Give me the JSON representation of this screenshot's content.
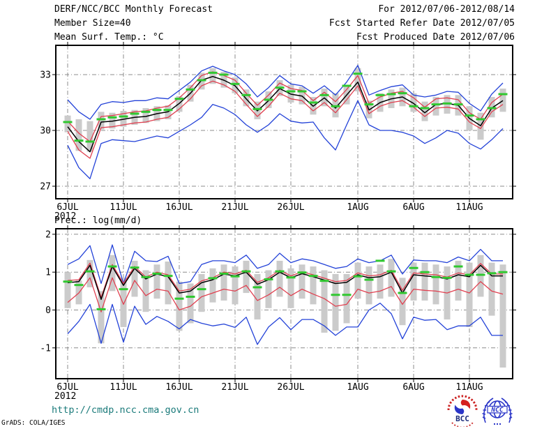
{
  "header": {
    "left": [
      "DERF/NCC/BCC Monthly Forecast",
      "Member Size=40",
      "Mean Surf. Temp.: °C"
    ],
    "right": [
      "For 2012/07/06-2012/08/14",
      "Fcst Started Refer Date 2012/07/05",
      "Fcst Produced Date 2012/07/06"
    ]
  },
  "between_label": "Prec.: log(mm/d)",
  "footer": {
    "url": "http://cmdp.ncc.cma.gov.cn",
    "credit": "GrADS: COLA/IGES"
  },
  "logos": {
    "bcc_label": "BCC",
    "ncc_label": "NCC"
  },
  "colors": {
    "blue": "#2342d8",
    "red": "#e04050",
    "black": "#000000",
    "green": "#30c830",
    "bar": "#cbcbcb",
    "grid": "#8c8c8c",
    "url": "#1a7a7a"
  },
  "chart_data": [
    {
      "type": "line",
      "title": "Mean Surf. Temp.: °C",
      "x_tick_labels": [
        "6JUL",
        "11JUL",
        "16JUL",
        "21JUL",
        "26JUL",
        "1AUG",
        "6AUG",
        "11AUG"
      ],
      "x_tick_day_index": [
        0,
        5,
        10,
        15,
        20,
        26,
        31,
        36
      ],
      "x_year_label": "2012",
      "n_points": 40,
      "yticks": [
        33,
        30,
        27
      ],
      "ylim": [
        26.3,
        34.6
      ],
      "grid": true,
      "legend_position": "none",
      "series": [
        {
          "name": "ensemble-max",
          "color": "blue",
          "values": [
            31.65,
            31.0,
            30.6,
            31.4,
            31.55,
            31.5,
            31.6,
            31.6,
            31.75,
            31.7,
            32.15,
            32.6,
            33.2,
            33.45,
            33.2,
            33.0,
            32.5,
            31.8,
            32.3,
            32.95,
            32.5,
            32.4,
            32.0,
            32.4,
            31.9,
            32.6,
            33.5,
            31.9,
            32.15,
            32.35,
            32.45,
            31.9,
            31.8,
            31.9,
            32.1,
            32.05,
            31.45,
            31.05,
            31.95,
            32.55
          ]
        },
        {
          "name": "upper-quartile",
          "color": "red",
          "values": [
            30.5,
            29.85,
            29.4,
            30.75,
            30.8,
            30.9,
            31.0,
            31.05,
            31.2,
            31.3,
            31.75,
            32.3,
            32.95,
            33.15,
            32.95,
            32.7,
            32.0,
            31.35,
            31.9,
            32.55,
            32.25,
            32.15,
            31.6,
            32.05,
            31.55,
            32.2,
            32.95,
            31.45,
            31.8,
            32.0,
            32.1,
            31.75,
            31.25,
            31.7,
            31.75,
            31.65,
            30.95,
            30.6,
            31.5,
            31.95
          ]
        },
        {
          "name": "lower-quartile",
          "color": "red",
          "values": [
            29.95,
            28.95,
            28.5,
            30.15,
            30.2,
            30.3,
            30.4,
            30.45,
            30.6,
            30.7,
            31.15,
            31.7,
            32.4,
            32.65,
            32.45,
            32.1,
            31.4,
            30.75,
            31.3,
            32.0,
            31.7,
            31.6,
            31.05,
            31.5,
            30.95,
            31.65,
            32.4,
            30.9,
            31.3,
            31.5,
            31.6,
            31.25,
            30.75,
            31.2,
            31.25,
            31.15,
            30.45,
            30.1,
            31.0,
            31.4
          ]
        },
        {
          "name": "ensemble-min",
          "color": "blue",
          "values": [
            29.2,
            28.0,
            27.4,
            29.3,
            29.5,
            29.45,
            29.4,
            29.55,
            29.7,
            29.6,
            29.95,
            30.3,
            30.7,
            31.4,
            31.2,
            30.85,
            30.3,
            29.9,
            30.3,
            30.9,
            30.5,
            30.4,
            30.45,
            29.6,
            28.95,
            30.3,
            31.6,
            30.3,
            30.0,
            30.0,
            29.9,
            29.7,
            29.3,
            29.6,
            30.0,
            29.85,
            29.3,
            29.0,
            29.5,
            30.1
          ]
        },
        {
          "name": "ensemble-median",
          "color": "black",
          "values": [
            30.2,
            29.4,
            28.85,
            30.45,
            30.5,
            30.6,
            30.7,
            30.75,
            30.9,
            31.0,
            31.45,
            32.0,
            32.7,
            32.9,
            32.7,
            32.4,
            31.7,
            31.05,
            31.6,
            32.25,
            31.95,
            31.85,
            31.3,
            31.75,
            31.2,
            31.9,
            32.6,
            31.1,
            31.5,
            31.7,
            31.8,
            31.45,
            30.95,
            31.4,
            31.45,
            31.35,
            30.65,
            30.25,
            31.2,
            31.6
          ]
        }
      ],
      "observation": {
        "name": "observation-dashes",
        "color": "green",
        "values": [
          30.45,
          29.45,
          29.4,
          30.6,
          30.7,
          30.75,
          30.9,
          31.0,
          31.1,
          31.1,
          31.7,
          32.2,
          32.7,
          33.1,
          33.0,
          32.5,
          31.9,
          31.15,
          31.65,
          32.3,
          32.1,
          32.1,
          31.5,
          31.9,
          31.3,
          32.4,
          33.05,
          31.4,
          31.9,
          31.95,
          32.0,
          31.3,
          31.2,
          31.4,
          31.45,
          31.4,
          30.8,
          30.6,
          31.2,
          31.95
        ]
      },
      "spread_bars": [
        [
          29.9,
          30.8
        ],
        [
          28.9,
          30.6
        ],
        [
          28.85,
          30.5
        ],
        [
          30.05,
          31.0
        ],
        [
          30.1,
          30.95
        ],
        [
          30.2,
          31.05
        ],
        [
          30.3,
          31.1
        ],
        [
          30.4,
          31.2
        ],
        [
          30.5,
          31.3
        ],
        [
          30.6,
          31.35
        ],
        [
          31.0,
          31.85
        ],
        [
          31.55,
          32.45
        ],
        [
          32.2,
          33.1
        ],
        [
          32.5,
          33.35
        ],
        [
          32.3,
          33.15
        ],
        [
          32.0,
          32.85
        ],
        [
          31.3,
          32.2
        ],
        [
          30.6,
          31.55
        ],
        [
          31.2,
          32.1
        ],
        [
          31.85,
          32.7
        ],
        [
          31.5,
          32.45
        ],
        [
          31.4,
          32.35
        ],
        [
          30.85,
          31.8
        ],
        [
          31.3,
          32.25
        ],
        [
          30.7,
          32.0
        ],
        [
          31.4,
          32.45
        ],
        [
          32.1,
          33.35
        ],
        [
          30.65,
          31.6
        ],
        [
          31.0,
          32.0
        ],
        [
          31.2,
          32.2
        ],
        [
          31.3,
          32.3
        ],
        [
          31.0,
          32.0
        ],
        [
          30.5,
          31.55
        ],
        [
          30.8,
          31.8
        ],
        [
          30.9,
          31.9
        ],
        [
          30.8,
          31.9
        ],
        [
          30.0,
          31.3
        ],
        [
          29.5,
          30.95
        ],
        [
          30.7,
          31.8
        ],
        [
          31.0,
          32.25
        ]
      ]
    },
    {
      "type": "line",
      "title": "Prec.: log(mm/d)",
      "x_tick_labels": [
        "6JUL",
        "11JUL",
        "16JUL",
        "21JUL",
        "26JUL",
        "1AUG",
        "6AUG",
        "11AUG"
      ],
      "x_tick_day_index": [
        0,
        5,
        10,
        15,
        20,
        26,
        31,
        36
      ],
      "x_year_label": "2012",
      "n_points": 40,
      "yticks": [
        2,
        1,
        0,
        -1
      ],
      "ylim": [
        -1.83,
        2.13
      ],
      "grid": true,
      "legend_position": "none",
      "series": [
        {
          "name": "ensemble-max",
          "color": "blue",
          "values": [
            1.2,
            1.35,
            1.7,
            0.7,
            1.72,
            0.7,
            1.55,
            1.3,
            1.28,
            1.42,
            0.7,
            0.75,
            1.2,
            1.3,
            1.3,
            1.25,
            1.45,
            1.1,
            1.2,
            1.5,
            1.25,
            1.35,
            1.3,
            1.2,
            1.1,
            1.15,
            1.35,
            1.25,
            1.3,
            1.45,
            0.95,
            1.32,
            1.3,
            1.3,
            1.25,
            1.4,
            1.3,
            1.6,
            1.3,
            1.3
          ]
        },
        {
          "name": "upper-quartile",
          "color": "red",
          "values": [
            0.78,
            0.8,
            1.24,
            0.33,
            1.2,
            0.7,
            1.15,
            0.87,
            1.0,
            0.93,
            0.5,
            0.55,
            0.77,
            0.85,
            1.0,
            0.95,
            1.05,
            0.73,
            0.85,
            1.05,
            0.9,
            1.01,
            0.93,
            0.84,
            0.75,
            0.78,
            0.98,
            0.9,
            0.93,
            1.05,
            0.52,
            0.98,
            0.95,
            0.93,
            0.87,
            0.98,
            0.93,
            1.23,
            0.95,
            0.95
          ]
        },
        {
          "name": "lower-quartile",
          "color": "red",
          "values": [
            0.2,
            0.45,
            0.85,
            -0.05,
            0.85,
            0.15,
            0.78,
            0.38,
            0.55,
            0.5,
            0.0,
            0.1,
            0.35,
            0.45,
            0.55,
            0.5,
            0.65,
            0.25,
            0.4,
            0.6,
            0.38,
            0.55,
            0.42,
            0.3,
            0.1,
            0.15,
            0.55,
            0.45,
            0.5,
            0.62,
            0.15,
            0.55,
            0.52,
            0.5,
            0.45,
            0.55,
            0.45,
            0.75,
            0.5,
            0.42
          ]
        },
        {
          "name": "ensemble-min",
          "color": "blue",
          "values": [
            -0.63,
            -0.3,
            0.15,
            -0.88,
            0.15,
            -0.85,
            0.1,
            -0.38,
            -0.17,
            -0.3,
            -0.5,
            -0.25,
            -0.35,
            -0.42,
            -0.37,
            -0.46,
            -0.19,
            -0.91,
            -0.45,
            -0.2,
            -0.52,
            -0.25,
            -0.25,
            -0.42,
            -0.67,
            -0.45,
            -0.45,
            0.0,
            0.18,
            -0.1,
            -0.76,
            -0.19,
            -0.27,
            -0.25,
            -0.52,
            -0.42,
            -0.42,
            -0.19,
            -0.67,
            -0.67
          ]
        },
        {
          "name": "ensemble-median",
          "color": "black",
          "values": [
            0.72,
            0.75,
            1.18,
            0.28,
            1.15,
            0.65,
            1.1,
            0.82,
            0.95,
            0.88,
            0.45,
            0.5,
            0.72,
            0.8,
            0.95,
            0.9,
            1.0,
            0.68,
            0.8,
            1.0,
            0.85,
            0.96,
            0.88,
            0.79,
            0.7,
            0.73,
            0.93,
            0.85,
            0.88,
            1.0,
            0.45,
            0.93,
            0.9,
            0.88,
            0.82,
            0.93,
            0.88,
            1.18,
            0.9,
            0.9
          ]
        }
      ],
      "observation": {
        "name": "observation-dashes",
        "color": "green",
        "values": [
          0.75,
          0.66,
          1.02,
          0.02,
          1.15,
          0.55,
          1.12,
          0.87,
          0.96,
          0.9,
          0.3,
          0.35,
          0.55,
          0.84,
          0.96,
          0.89,
          1.02,
          0.6,
          0.81,
          1.02,
          0.86,
          0.99,
          0.9,
          0.77,
          0.4,
          0.4,
          0.89,
          0.8,
          1.3,
          1.02,
          0.45,
          1.11,
          1.0,
          0.87,
          0.85,
          1.15,
          0.93,
          0.93,
          0.97,
          1.0
        ]
      },
      "spread_bars": [
        [
          0.05,
          1.0
        ],
        [
          0.15,
          0.78
        ],
        [
          0.6,
          1.32
        ],
        [
          -0.88,
          0.5
        ],
        [
          0.5,
          1.45
        ],
        [
          -0.45,
          0.85
        ],
        [
          0.35,
          1.3
        ],
        [
          -0.05,
          1.05
        ],
        [
          0.3,
          1.2
        ],
        [
          0.15,
          1.28
        ],
        [
          -0.55,
          0.75
        ],
        [
          -0.35,
          0.7
        ],
        [
          -0.05,
          0.95
        ],
        [
          0.2,
          1.1
        ],
        [
          0.25,
          1.2
        ],
        [
          0.15,
          1.15
        ],
        [
          0.45,
          1.3
        ],
        [
          -0.25,
          0.95
        ],
        [
          0.05,
          1.05
        ],
        [
          0.35,
          1.3
        ],
        [
          0.05,
          1.1
        ],
        [
          0.3,
          1.2
        ],
        [
          0.15,
          1.15
        ],
        [
          -0.6,
          1.05
        ],
        [
          -0.55,
          0.95
        ],
        [
          -0.35,
          0.95
        ],
        [
          0.3,
          1.25
        ],
        [
          0.15,
          1.15
        ],
        [
          0.3,
          1.2
        ],
        [
          0.35,
          1.35
        ],
        [
          -0.4,
          0.85
        ],
        [
          0.25,
          1.25
        ],
        [
          0.25,
          1.25
        ],
        [
          0.15,
          1.2
        ],
        [
          -0.25,
          1.15
        ],
        [
          0.25,
          1.3
        ],
        [
          -0.45,
          1.25
        ],
        [
          0.35,
          1.45
        ],
        [
          -0.15,
          1.25
        ],
        [
          -1.52,
          1.2
        ]
      ]
    }
  ]
}
